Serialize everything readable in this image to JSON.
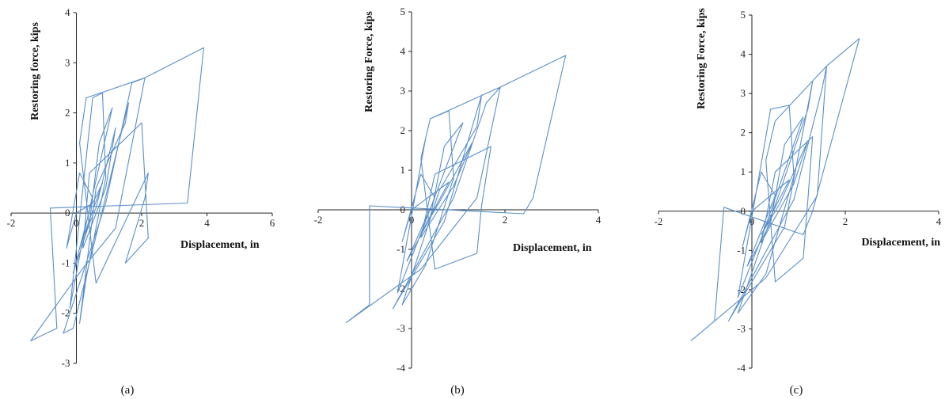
{
  "chart_data": [
    {
      "type": "line",
      "panel_label": "(a)",
      "xlabel": "Displacement, in",
      "ylabel": "Restoring force, kips",
      "xlim": [
        -2,
        6
      ],
      "ylim": [
        -3,
        4
      ],
      "xticks": [
        -2,
        0,
        2,
        4,
        6
      ],
      "yticks": [
        -3,
        -2,
        -1,
        0,
        1,
        2,
        3,
        4
      ],
      "grid": false,
      "series": [
        {
          "color": "#5b8fc9",
          "points": [
            [
              0,
              0
            ],
            [
              -0.3,
              -0.7
            ],
            [
              0.1,
              0.8
            ],
            [
              0.5,
              0.3
            ],
            [
              -0.1,
              -1.2
            ],
            [
              0.4,
              -0.2
            ],
            [
              0.7,
              1.4
            ],
            [
              1.1,
              2.1
            ],
            [
              0.2,
              -0.5
            ],
            [
              -0.2,
              -1.9
            ],
            [
              0.4,
              1.7
            ],
            [
              0.5,
              2.3
            ],
            [
              0.8,
              2.4
            ],
            [
              0.9,
              0.7
            ],
            [
              0.3,
              -1.3
            ],
            [
              0.1,
              -2.2
            ],
            [
              0.6,
              0.5
            ],
            [
              1.5,
              1.8
            ],
            [
              1.6,
              2.2
            ],
            [
              0.7,
              -0.2
            ],
            [
              -0.1,
              -2.3
            ],
            [
              -0.4,
              -2.4
            ],
            [
              0.9,
              0.2
            ],
            [
              1.7,
              2.6
            ],
            [
              2.1,
              2.7
            ],
            [
              1.2,
              -0.3
            ],
            [
              0.2,
              -1.1
            ],
            [
              -1.4,
              -2.55
            ],
            [
              -0.6,
              -2.3
            ],
            [
              -0.8,
              0.1
            ],
            [
              3.4,
              0.2
            ],
            [
              3.9,
              3.3
            ],
            [
              2.1,
              2.7
            ],
            [
              0.3,
              2.3
            ],
            [
              0.1,
              1.4
            ],
            [
              0.6,
              -1.4
            ],
            [
              2.2,
              0.8
            ],
            [
              2.1,
              0.3
            ],
            [
              1.5,
              -1.0
            ],
            [
              2.2,
              -0.5
            ],
            [
              2.0,
              1.8
            ],
            [
              0.4,
              0.8
            ],
            [
              0.2,
              -0.7
            ],
            [
              0.9,
              0.5
            ],
            [
              1.2,
              1.7
            ],
            [
              0.6,
              0.1
            ],
            [
              0.2,
              -0.5
            ],
            [
              0.8,
              0.6
            ],
            [
              0.5,
              0.2
            ],
            [
              0,
              0
            ]
          ]
        }
      ]
    },
    {
      "type": "line",
      "panel_label": "(b)",
      "xlabel": "Displacement, in",
      "ylabel": "Restoring Force, kips",
      "xlim": [
        -2,
        4
      ],
      "ylim": [
        -4,
        5
      ],
      "xticks": [
        -2,
        0,
        2,
        4
      ],
      "yticks": [
        -4,
        -3,
        -2,
        -1,
        0,
        1,
        2,
        3,
        4,
        5
      ],
      "grid": false,
      "series": [
        {
          "color": "#5b8fc9",
          "points": [
            [
              0,
              0
            ],
            [
              -0.2,
              -0.8
            ],
            [
              0.2,
              0.9
            ],
            [
              0.5,
              0.3
            ],
            [
              -0.1,
              -1.3
            ],
            [
              0.4,
              -0.2
            ],
            [
              0.7,
              1.6
            ],
            [
              1.1,
              2.2
            ],
            [
              0.2,
              -0.6
            ],
            [
              -0.3,
              -2.1
            ],
            [
              0.3,
              1.8
            ],
            [
              0.4,
              2.3
            ],
            [
              0.8,
              2.5
            ],
            [
              0.9,
              0.8
            ],
            [
              0.3,
              -1.4
            ],
            [
              -0.2,
              -2.4
            ],
            [
              0.6,
              0.5
            ],
            [
              1.4,
              2.1
            ],
            [
              1.5,
              2.9
            ],
            [
              0.7,
              -0.3
            ],
            [
              -0.4,
              -2.5
            ],
            [
              0.9,
              0.3
            ],
            [
              1.6,
              2.7
            ],
            [
              1.9,
              3.1
            ],
            [
              1.4,
              0.3
            ],
            [
              0.2,
              -1.5
            ],
            [
              -1.4,
              -2.85
            ],
            [
              -0.9,
              -2.4
            ],
            [
              -0.9,
              0.1
            ],
            [
              2.4,
              -0.1
            ],
            [
              2.6,
              0.3
            ],
            [
              3.3,
              3.9
            ],
            [
              1.9,
              3.1
            ],
            [
              0.4,
              2.3
            ],
            [
              0.2,
              1.3
            ],
            [
              0.5,
              -1.5
            ],
            [
              1.4,
              -1.1
            ],
            [
              1.5,
              0.1
            ],
            [
              1.7,
              1.6
            ],
            [
              0.5,
              0.9
            ],
            [
              0.2,
              -0.7
            ],
            [
              0.9,
              0.6
            ],
            [
              1.3,
              1.7
            ],
            [
              0.6,
              0.2
            ],
            [
              0.2,
              -0.6
            ],
            [
              0.8,
              0.7
            ],
            [
              0,
              0
            ]
          ]
        }
      ]
    },
    {
      "type": "line",
      "panel_label": "(c)",
      "xlabel": "Displacement, in",
      "ylabel": "Restoring Force, kips",
      "xlim": [
        -2,
        4
      ],
      "ylim": [
        -4,
        5
      ],
      "xticks": [
        -2,
        0,
        2,
        4
      ],
      "yticks": [
        -4,
        -3,
        -2,
        -1,
        0,
        1,
        2,
        3,
        4,
        5
      ],
      "grid": false,
      "series": [
        {
          "color": "#5b8fc9",
          "points": [
            [
              0,
              0
            ],
            [
              -0.2,
              -0.9
            ],
            [
              0.2,
              1.0
            ],
            [
              0.5,
              0.4
            ],
            [
              -0.1,
              -1.4
            ],
            [
              0.4,
              -0.3
            ],
            [
              0.7,
              1.7
            ],
            [
              1.1,
              2.4
            ],
            [
              0.2,
              -0.7
            ],
            [
              -0.3,
              -2.2
            ],
            [
              0.3,
              1.9
            ],
            [
              0.4,
              2.6
            ],
            [
              0.8,
              2.7
            ],
            [
              0.9,
              0.9
            ],
            [
              0.3,
              -1.6
            ],
            [
              -0.3,
              -2.6
            ],
            [
              0.6,
              0.5
            ],
            [
              1.2,
              2.6
            ],
            [
              1.3,
              3.3
            ],
            [
              0.7,
              -0.4
            ],
            [
              -0.5,
              -2.8
            ],
            [
              0.9,
              0.3
            ],
            [
              1.5,
              3.1
            ],
            [
              1.6,
              3.7
            ],
            [
              1.4,
              0.4
            ],
            [
              0.3,
              -1.7
            ],
            [
              -1.3,
              -3.3
            ],
            [
              -0.8,
              -2.8
            ],
            [
              -0.6,
              0.1
            ],
            [
              1.1,
              -0.6
            ],
            [
              1.3,
              0.0
            ],
            [
              2.3,
              4.4
            ],
            [
              1.6,
              3.7
            ],
            [
              0.5,
              2.3
            ],
            [
              0.3,
              1.3
            ],
            [
              0.5,
              -1.8
            ],
            [
              1.1,
              -1.2
            ],
            [
              1.2,
              0.3
            ],
            [
              1.3,
              1.9
            ],
            [
              0.5,
              1.0
            ],
            [
              0.2,
              -0.8
            ],
            [
              0.9,
              0.7
            ],
            [
              1.2,
              1.8
            ],
            [
              0.6,
              0.2
            ],
            [
              0.2,
              -0.6
            ],
            [
              0.8,
              0.8
            ],
            [
              0,
              0
            ]
          ]
        }
      ]
    }
  ]
}
